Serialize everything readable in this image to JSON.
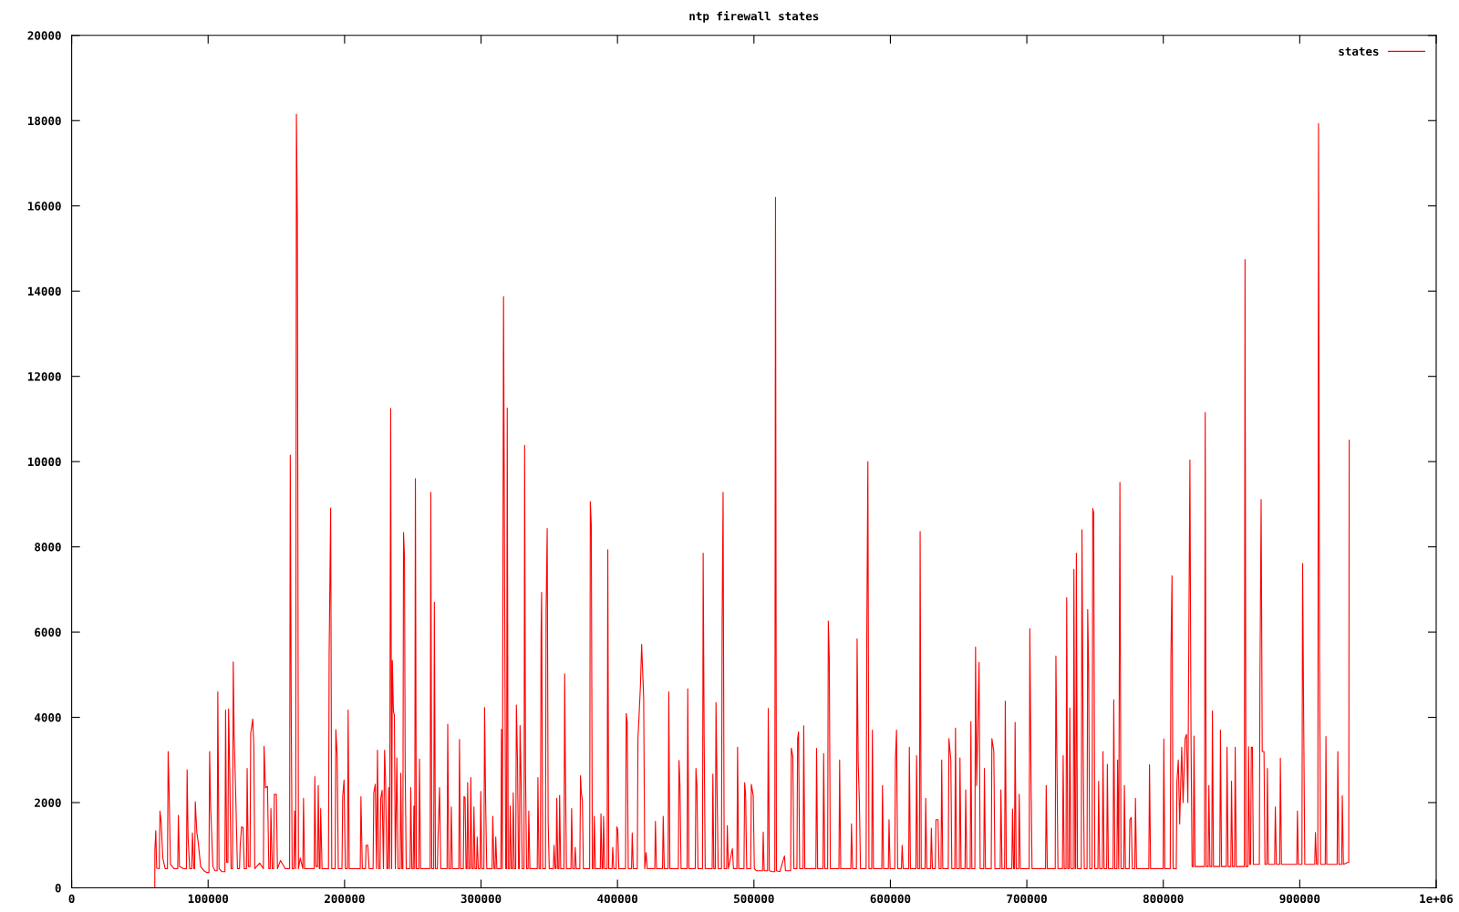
{
  "chart_data": {
    "type": "line",
    "title": "ntp firewall states",
    "legend": "top right",
    "line_style": "solid",
    "xlim": [
      0,
      1000000
    ],
    "ylim": [
      0,
      20000
    ],
    "xticks": [
      0,
      100000,
      200000,
      300000,
      400000,
      500000,
      600000,
      700000,
      800000,
      900000,
      {
        "value": 1000000,
        "label": "1e+06"
      }
    ],
    "yticks": [
      0,
      2000,
      4000,
      6000,
      8000,
      10000,
      12000,
      14000,
      16000,
      18000,
      20000
    ],
    "series": [
      {
        "name": "states",
        "color": "#ff0000",
        "x": [
          60900,
          61000,
          61650,
          62300,
          64200,
          64700,
          65600,
          66800,
          68500,
          70200,
          70700,
          71400,
          72400,
          75000,
          77700,
          78200,
          79000,
          82000,
          84100,
          84600,
          85300,
          86500,
          88000,
          88500,
          89500,
          90100,
          90600,
          91700,
          92800,
          94500,
          97000,
          99000,
          100600,
          101100,
          101800,
          103500,
          105000,
          106600,
          107100,
          108000,
          110000,
          112300,
          112800,
          113600,
          114500,
          115000,
          115900,
          116800,
          117900,
          118400,
          119100,
          120300,
          121500,
          123000,
          123500,
          124500,
          125600,
          126500,
          128100,
          128600,
          129500,
          130700,
          131200,
          132700,
          133500,
          134200,
          137800,
          140500,
          141000,
          142000,
          143500,
          144500,
          145500,
          146000,
          147000,
          148000,
          148500,
          150000,
          150800,
          153000,
          156500,
          159700,
          160200,
          160900,
          161600,
          162900,
          163400,
          164200,
          164700,
          165400,
          166200,
          167500,
          169400,
          169900,
          170700,
          174500,
          177700,
          178200,
          179000,
          180200,
          180700,
          181500,
          182000,
          182500,
          183500,
          187500,
          188200,
          188700,
          189800,
          190600,
          193100,
          193600,
          194600,
          195400,
          198100,
          198600,
          199600,
          200600,
          202100,
          202600,
          203400,
          207000,
          211500,
          212000,
          213000,
          215300,
          215800,
          217000,
          218000,
          220900,
          221400,
          222500,
          223400,
          224100,
          225000,
          226000,
          226500,
          227500,
          228500,
          229300,
          230000,
          231000,
          231800,
          232300,
          233000,
          233800,
          234500,
          235000,
          235800,
          236500,
          237200,
          238300,
          239200,
          240700,
          241200,
          242000,
          242700,
          243200,
          243900,
          244400,
          245200,
          248000,
          248500,
          249300,
          250300,
          250800,
          251400,
          251900,
          252600,
          254400,
          254900,
          255700,
          259000,
          262700,
          263200,
          263900,
          265300,
          265800,
          266600,
          268000,
          268500,
          269600,
          270500,
          275100,
          275600,
          276400,
          277700,
          278200,
          279000,
          283700,
          284200,
          285000,
          287000,
          287500,
          288300,
          289000,
          289700,
          290200,
          291000,
          292000,
          292500,
          293300,
          294300,
          294800,
          295600,
          296700,
          297200,
          298000,
          299300,
          299800,
          300600,
          302100,
          302600,
          303400,
          304200,
          308100,
          308600,
          309500,
          310300,
          310800,
          311600,
          314500,
          315000,
          315600,
          316200,
          316500,
          317300,
          318100,
          318700,
          319200,
          319900,
          320900,
          321400,
          322200,
          323100,
          323600,
          324400,
          325400,
          325900,
          326700,
          327500,
          328100,
          328600,
          329400,
          330200,
          331500,
          331950,
          332600,
          333400,
          334500,
          335000,
          335800,
          339000,
          341200,
          341700,
          342500,
          343500,
          344000,
          344400,
          345200,
          347200,
          347700,
          348500,
          349200,
          350000,
          353000,
          353500,
          354300,
          355000,
          355500,
          356300,
          357100,
          357600,
          358400,
          360800,
          361300,
          361800,
          362600,
          365900,
          366400,
          367200,
          368500,
          369000,
          369800,
          372400,
          372900,
          373500,
          374300,
          375000,
          378500,
          379600,
          380100,
          380800,
          381600,
          382500,
          383000,
          383800,
          387400,
          387900,
          388700,
          389300,
          389800,
          390600,
          392400,
          392900,
          393600,
          396000,
          396500,
          397300,
          399000,
          399500,
          400200,
          401000,
          405900,
          406400,
          407100,
          407900,
          410300,
          410800,
          411600,
          414500,
          415000,
          415800,
          416900,
          417700,
          419200,
          420000,
          421000,
          421800,
          427300,
          427800,
          428600,
          433000,
          433500,
          434300,
          437100,
          437600,
          438400,
          444600,
          445100,
          445800,
          446600,
          451000,
          451500,
          452300,
          457000,
          457500,
          458200,
          459000,
          462300,
          462800,
          463500,
          464300,
          469400,
          469900,
          470600,
          471700,
          472200,
          473000,
          473800,
          476200,
          476700,
          477400,
          478200,
          480000,
          480500,
          481300,
          484200,
          485000,
          487500,
          488000,
          488800,
          492700,
          493200,
          493900,
          494700,
          497600,
          498100,
          499500,
          500300,
          502000,
          506300,
          506800,
          507500,
          510000,
          510500,
          511300,
          513500,
          515300,
          515800,
          516500,
          519000,
          522400,
          523100,
          526900,
          527400,
          528500,
          529300,
          531500,
          532000,
          532700,
          533500,
          536000,
          536500,
          537300,
          541000,
          545400,
          545900,
          546700,
          550600,
          551100,
          551900,
          554000,
          554500,
          555200,
          556000,
          559500,
          562300,
          562800,
          563600,
          567000,
          571000,
          571500,
          572300,
          575100,
          575600,
          576400,
          577300,
          578100,
          582200,
          582700,
          583500,
          584300,
          586300,
          586800,
          587600,
          593700,
          594200,
          595000,
          598500,
          599000,
          599800,
          603200,
          603700,
          604500,
          605300,
          608100,
          608600,
          609400,
          613400,
          613900,
          614700,
          618700,
          619200,
          620000,
          621300,
          621800,
          622600,
          625400,
          625900,
          626700,
          629500,
          630000,
          630800,
          632900,
          633400,
          634900,
          635700,
          637100,
          637600,
          638400,
          642400,
          642900,
          644300,
          645000,
          647200,
          647700,
          648500,
          650500,
          651000,
          651800,
          654700,
          655200,
          656000,
          658500,
          659000,
          659700,
          661900,
          662400,
          663200,
          665000,
          665800,
          668400,
          668900,
          669700,
          673900,
          674400,
          675800,
          676600,
          680500,
          681000,
          681800,
          683700,
          684200,
          685000,
          687800,
          689000,
          689500,
          690300,
          690900,
          691400,
          692200,
          693900,
          694400,
          695200,
          699000,
          701700,
          702200,
          703000,
          703800,
          708000,
          713700,
          714200,
          715000,
          718000,
          720800,
          721300,
          722000,
          722800,
          726100,
          726600,
          727400,
          728700,
          729200,
          730000,
          731000,
          731500,
          732300,
          734000,
          734500,
          735300,
          735800,
          736300,
          737100,
          739900,
          740400,
          741300,
          742100,
          744100,
          744600,
          745300,
          746100,
          747800,
          748300,
          749000,
          749800,
          752100,
          752600,
          753400,
          755300,
          755800,
          756600,
          758500,
          759000,
          759800,
          763200,
          763700,
          764500,
          766000,
          766500,
          767300,
          768200,
          769000,
          771000,
          771500,
          772300,
          775000,
          775500,
          776500,
          777300,
          779100,
          779600,
          780400,
          784000,
          789400,
          789900,
          790700,
          795000,
          799900,
          800400,
          801100,
          805100,
          805600,
          806400,
          807200,
          809500,
          810000,
          811000,
          812000,
          813500,
          814500,
          816000,
          817000,
          818000,
          819500,
          820300,
          821100,
          822000,
          822500,
          823300,
          827000,
          830200,
          830700,
          831500,
          832900,
          833400,
          834200,
          835500,
          836000,
          836800,
          841400,
          841900,
          842700,
          846200,
          846700,
          847500,
          849500,
          850000,
          850800,
          852200,
          852700,
          853500,
          856500,
          859400,
          859900,
          860600,
          862000,
          862500,
          863300,
          864000,
          864500,
          865300,
          866000,
          870000,
          870400,
          870800,
          871700,
          872500,
          873800,
          874500,
          875800,
          876300,
          877000,
          881600,
          882100,
          882900,
          885300,
          885800,
          886600,
          890000,
          897800,
          898300,
          899000,
          901600,
          902100,
          902900,
          903700,
          908000,
          911000,
          911500,
          912300,
          913250,
          913750,
          914500,
          915300,
          918700,
          919200,
          919800,
          923000,
          927400,
          927900,
          928700,
          930700,
          931200,
          932000,
          935500,
          935900,
          936250
        ],
        "values": [
          0,
          890,
          1340,
          460,
          450,
          1800,
          1530,
          700,
          450,
          450,
          3200,
          2260,
          550,
          450,
          450,
          1700,
          500,
          450,
          450,
          2770,
          1190,
          450,
          450,
          1290,
          450,
          450,
          2020,
          1310,
          1050,
          500,
          400,
          360,
          360,
          3200,
          1920,
          500,
          400,
          400,
          4600,
          450,
          380,
          380,
          4170,
          600,
          600,
          4200,
          2590,
          450,
          450,
          5300,
          3560,
          2080,
          450,
          450,
          1000,
          1430,
          1410,
          450,
          450,
          2800,
          500,
          500,
          3620,
          3960,
          3320,
          450,
          580,
          450,
          3320,
          2350,
          2380,
          450,
          450,
          1860,
          450,
          450,
          2190,
          2190,
          450,
          640,
          450,
          450,
          10150,
          4170,
          450,
          450,
          1800,
          450,
          18150,
          15630,
          450,
          700,
          450,
          2100,
          450,
          450,
          450,
          2610,
          500,
          500,
          2400,
          450,
          450,
          1860,
          450,
          450,
          450,
          5480,
          8910,
          450,
          450,
          3710,
          3080,
          450,
          450,
          2140,
          2530,
          450,
          450,
          4170,
          450,
          450,
          450,
          2140,
          450,
          450,
          1000,
          1000,
          450,
          450,
          2230,
          2430,
          450,
          3230,
          450,
          450,
          2100,
          2290,
          450,
          3230,
          2590,
          450,
          450,
          2350,
          450,
          11250,
          450,
          5330,
          4130,
          4050,
          450,
          3050,
          450,
          450,
          2690,
          450,
          450,
          8340,
          7760,
          2830,
          450,
          450,
          2350,
          450,
          450,
          1920,
          450,
          9600,
          450,
          450,
          3020,
          450,
          450,
          450,
          9280,
          450,
          450,
          6700,
          450,
          450,
          1190,
          2350,
          450,
          450,
          3840,
          450,
          450,
          1900,
          450,
          450,
          3480,
          450,
          450,
          2140,
          2120,
          450,
          450,
          2470,
          450,
          450,
          2590,
          450,
          450,
          1900,
          450,
          450,
          1190,
          450,
          450,
          2260,
          450,
          450,
          4230,
          1980,
          450,
          450,
          1680,
          450,
          450,
          1190,
          450,
          450,
          3720,
          450,
          9520,
          13870,
          7030,
          450,
          450,
          11260,
          450,
          450,
          1920,
          450,
          450,
          2230,
          450,
          450,
          4290,
          3020,
          450,
          450,
          3810,
          2470,
          450,
          450,
          10380,
          2770,
          450,
          450,
          1800,
          450,
          450,
          450,
          2590,
          450,
          450,
          5930,
          6930,
          450,
          450,
          6540,
          8430,
          1560,
          450,
          450,
          1000,
          450,
          450,
          2100,
          450,
          450,
          2170,
          450,
          450,
          5020,
          2930,
          450,
          450,
          1860,
          450,
          450,
          950,
          450,
          450,
          2630,
          2230,
          2040,
          450,
          450,
          450,
          9060,
          8510,
          450,
          450,
          1680,
          450,
          450,
          1740,
          450,
          450,
          1680,
          450,
          450,
          7930,
          450,
          450,
          950,
          450,
          450,
          1430,
          1370,
          450,
          450,
          4090,
          3890,
          450,
          450,
          1290,
          450,
          450,
          3500,
          4020,
          4800,
          5710,
          4450,
          450,
          830,
          450,
          450,
          1560,
          450,
          450,
          1680,
          450,
          450,
          4600,
          450,
          450,
          2990,
          2400,
          450,
          450,
          4670,
          450,
          450,
          2800,
          2400,
          450,
          450,
          7850,
          3560,
          450,
          450,
          2670,
          450,
          450,
          4350,
          2260,
          450,
          450,
          6210,
          9280,
          450,
          450,
          1460,
          450,
          920,
          450,
          450,
          3300,
          450,
          450,
          2470,
          2190,
          450,
          450,
          2430,
          2160,
          450,
          400,
          400,
          1310,
          400,
          400,
          4210,
          400,
          380,
          380,
          16200,
          400,
          380,
          750,
          400,
          400,
          3280,
          3080,
          450,
          450,
          3500,
          3660,
          450,
          450,
          3800,
          450,
          450,
          450,
          3270,
          450,
          450,
          3150,
          450,
          450,
          6260,
          5400,
          450,
          450,
          450,
          3000,
          450,
          450,
          450,
          1500,
          450,
          450,
          5840,
          2950,
          2000,
          450,
          450,
          5840,
          10000,
          450,
          450,
          3700,
          450,
          450,
          2400,
          450,
          450,
          1600,
          450,
          450,
          3000,
          3700,
          450,
          450,
          1000,
          450,
          450,
          3300,
          450,
          450,
          3100,
          450,
          450,
          8360,
          450,
          450,
          2100,
          450,
          450,
          1400,
          450,
          450,
          1600,
          1600,
          450,
          450,
          3000,
          450,
          450,
          3500,
          3000,
          450,
          450,
          3750,
          450,
          450,
          3050,
          450,
          450,
          2300,
          450,
          450,
          3900,
          450,
          450,
          5650,
          2400,
          5290,
          450,
          450,
          2800,
          450,
          450,
          3500,
          3200,
          450,
          450,
          2300,
          450,
          450,
          4380,
          450,
          450,
          450,
          1850,
          450,
          450,
          3880,
          450,
          450,
          2200,
          450,
          450,
          450,
          6080,
          2830,
          450,
          450,
          450,
          2400,
          450,
          450,
          450,
          5440,
          3130,
          450,
          450,
          3100,
          450,
          450,
          6810,
          450,
          450,
          4220,
          450,
          450,
          7470,
          450,
          450,
          7850,
          450,
          450,
          8400,
          3100,
          450,
          450,
          6530,
          5070,
          450,
          450,
          8900,
          8800,
          450,
          450,
          2500,
          450,
          450,
          3200,
          450,
          450,
          2900,
          450,
          450,
          4410,
          450,
          450,
          3000,
          450,
          9510,
          450,
          450,
          2400,
          450,
          450,
          1600,
          1650,
          450,
          450,
          2100,
          450,
          450,
          450,
          2890,
          450,
          450,
          450,
          3490,
          450,
          450,
          5440,
          7320,
          450,
          450,
          2500,
          3000,
          1500,
          3300,
          2000,
          3500,
          3600,
          2000,
          10040,
          3600,
          500,
          500,
          3560,
          500,
          500,
          500,
          11150,
          500,
          500,
          2400,
          500,
          500,
          4150,
          500,
          500,
          3700,
          500,
          500,
          3300,
          500,
          500,
          2500,
          500,
          500,
          3300,
          500,
          500,
          500,
          14740,
          500,
          500,
          3310,
          550,
          550,
          3300,
          3300,
          550,
          550,
          550,
          4640,
          9110,
          3200,
          3200,
          550,
          550,
          2800,
          550,
          550,
          1900,
          550,
          550,
          3040,
          550,
          550,
          550,
          1800,
          550,
          550,
          7610,
          3850,
          550,
          550,
          550,
          1300,
          550,
          550,
          17930,
          5400,
          550,
          550,
          3550,
          550,
          550,
          550,
          3200,
          550,
          550,
          2160,
          550,
          600,
          600,
          10500
        ]
      }
    ]
  }
}
